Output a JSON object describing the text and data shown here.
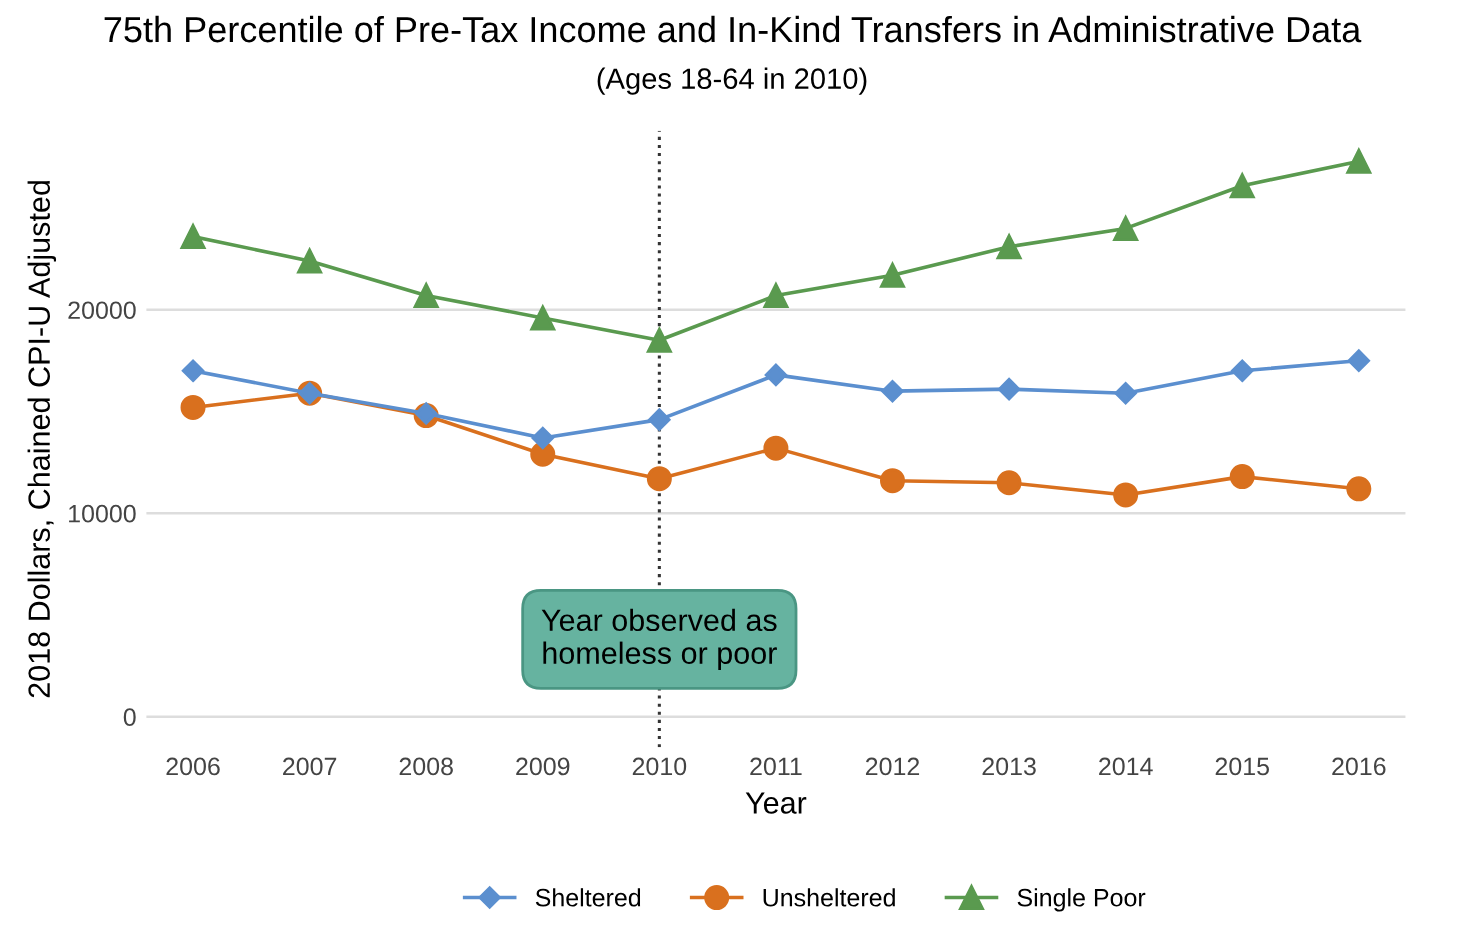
{
  "chart_data": {
    "type": "line",
    "title": "75th Percentile of Pre-Tax Income and In-Kind Transfers in Administrative Data",
    "subtitle": "(Ages 18-64 in 2010)",
    "xlabel": "Year",
    "ylabel": "2018 Dollars, Chained CPI-U Adjusted",
    "x": [
      2006,
      2007,
      2008,
      2009,
      2010,
      2011,
      2012,
      2013,
      2014,
      2015,
      2016
    ],
    "series": [
      {
        "name": "Sheltered",
        "color": "#5b8fcf",
        "marker": "diamond",
        "values": [
          17000,
          15900,
          14900,
          13700,
          14600,
          16800,
          16000,
          16100,
          15900,
          17000,
          17500
        ]
      },
      {
        "name": "Unsheltered",
        "color": "#d9701e",
        "marker": "circle",
        "values": [
          15200,
          15900,
          14800,
          12900,
          11700,
          13200,
          11600,
          11500,
          10900,
          11800,
          11200
        ]
      },
      {
        "name": "Single Poor",
        "color": "#5a9a4f",
        "marker": "triangle",
        "values": [
          23600,
          22400,
          20700,
          19600,
          18500,
          20700,
          21700,
          23100,
          24000,
          26100,
          27300
        ]
      }
    ],
    "xlim": [
      2005.6,
      2016.4
    ],
    "xticks": [
      2006,
      2007,
      2008,
      2009,
      2010,
      2011,
      2012,
      2013,
      2014,
      2015,
      2016
    ],
    "ylim": [
      -1500,
      28800
    ],
    "yticks": [
      0,
      10000,
      20000
    ],
    "grid": "y",
    "legend": "bottom",
    "line_style": "solid",
    "ref_lines": [
      {
        "axis": "x",
        "value": 2010,
        "line_style": "dotted",
        "color": "#333333"
      }
    ],
    "annotations": [
      {
        "text": "Year observed as\nhomeless or poor",
        "x": 2010,
        "y": 3800
      }
    ]
  }
}
